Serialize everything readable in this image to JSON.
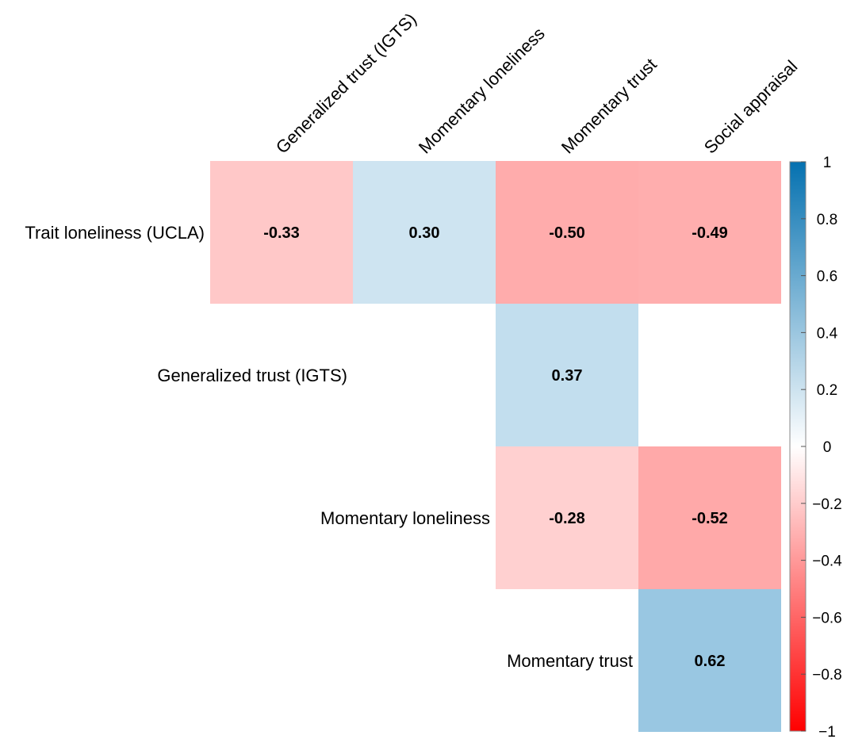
{
  "chart_data": {
    "type": "heatmap",
    "columns": [
      "Generalized trust (IGTS)",
      "Momentary loneliness",
      "Momentary trust",
      "Social appraisal"
    ],
    "rows": [
      "Trait loneliness (UCLA)",
      "Generalized trust (IGTS)",
      "Momentary loneliness",
      "Momentary trust"
    ],
    "cells": [
      {
        "row": 0,
        "col": 0,
        "value": -0.33,
        "label": "-0.33"
      },
      {
        "row": 0,
        "col": 1,
        "value": 0.3,
        "label": "0.30"
      },
      {
        "row": 0,
        "col": 2,
        "value": -0.5,
        "label": "-0.50"
      },
      {
        "row": 0,
        "col": 3,
        "value": -0.49,
        "label": "-0.49"
      },
      {
        "row": 1,
        "col": 2,
        "value": 0.37,
        "label": "0.37"
      },
      {
        "row": 2,
        "col": 2,
        "value": -0.28,
        "label": "-0.28"
      },
      {
        "row": 2,
        "col": 3,
        "value": -0.52,
        "label": "-0.52"
      },
      {
        "row": 3,
        "col": 3,
        "value": 0.62,
        "label": "0.62"
      }
    ],
    "colorbar": {
      "range": [
        -1,
        1
      ],
      "ticks": [
        "1",
        "0.8",
        "0.6",
        "0.4",
        "0.2",
        "0",
        "−0.2",
        "−0.4",
        "−0.6",
        "−0.8",
        "−1"
      ],
      "tick_values": [
        1,
        0.8,
        0.6,
        0.4,
        0.2,
        0,
        -0.2,
        -0.4,
        -0.6,
        -0.8,
        -1
      ],
      "positive_color": "#0571b0",
      "negative_color": "#ff0000",
      "neutral_color": "#ffffff"
    }
  }
}
